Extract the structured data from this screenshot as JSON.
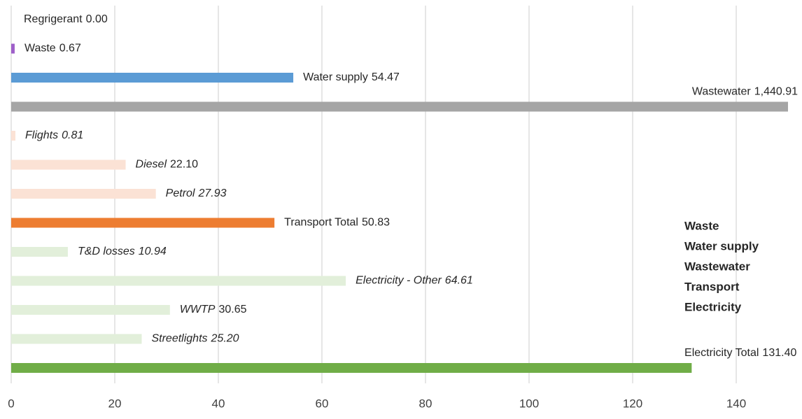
{
  "chart_data": {
    "type": "barh",
    "categories": [
      "Regrigerant",
      "Waste",
      "Water supply",
      "Wastewater",
      "Flights",
      "Diesel",
      "Petrol",
      "Transport Total",
      "T&D losses",
      "Electricity - Other",
      "WWTP",
      "Streetlights",
      "Electricity Total"
    ],
    "values": [
      0,
      0.67,
      54.47,
      1440.91,
      0.81,
      22.1,
      27.93,
      50.83,
      10.94,
      64.61,
      30.65,
      25.2,
      131.4
    ],
    "value_labels": [
      "0.00",
      "0.67",
      "54.47",
      "1,440.91",
      "0.81",
      "22.10",
      "27.93",
      "50.83",
      "10.94",
      "64.61",
      "30.65",
      "25.20",
      "131.40"
    ],
    "colors": [
      "#7f7f7f",
      "#9e5fc9",
      "#5b9bd5",
      "#a5a5a5",
      "#fbe2d5",
      "#fbe2d5",
      "#fbe2d5",
      "#ed7d31",
      "#e2efda",
      "#e2efda",
      "#e2efda",
      "#e2efda",
      "#70ad47"
    ],
    "label_styles": [
      "normal",
      "normal",
      "normal",
      "normal",
      "italic",
      "name-italic",
      "italic",
      "normal",
      "italic",
      "italic",
      "name-italic",
      "italic",
      "normal"
    ],
    "xlim": [
      0,
      150
    ],
    "xticks": [
      0,
      20,
      40,
      60,
      80,
      100,
      120,
      140
    ],
    "grid": true,
    "legend": [
      {
        "name": "Waste",
        "color": "#c58ee0"
      },
      {
        "name": "Water supply",
        "color": "#5b9bd5"
      },
      {
        "name": "Wastewater",
        "color": "#7f7f7f"
      },
      {
        "name": "Transport",
        "color": "#ed7d31"
      },
      {
        "name": "Electricity",
        "color": "#70ad47"
      }
    ]
  }
}
